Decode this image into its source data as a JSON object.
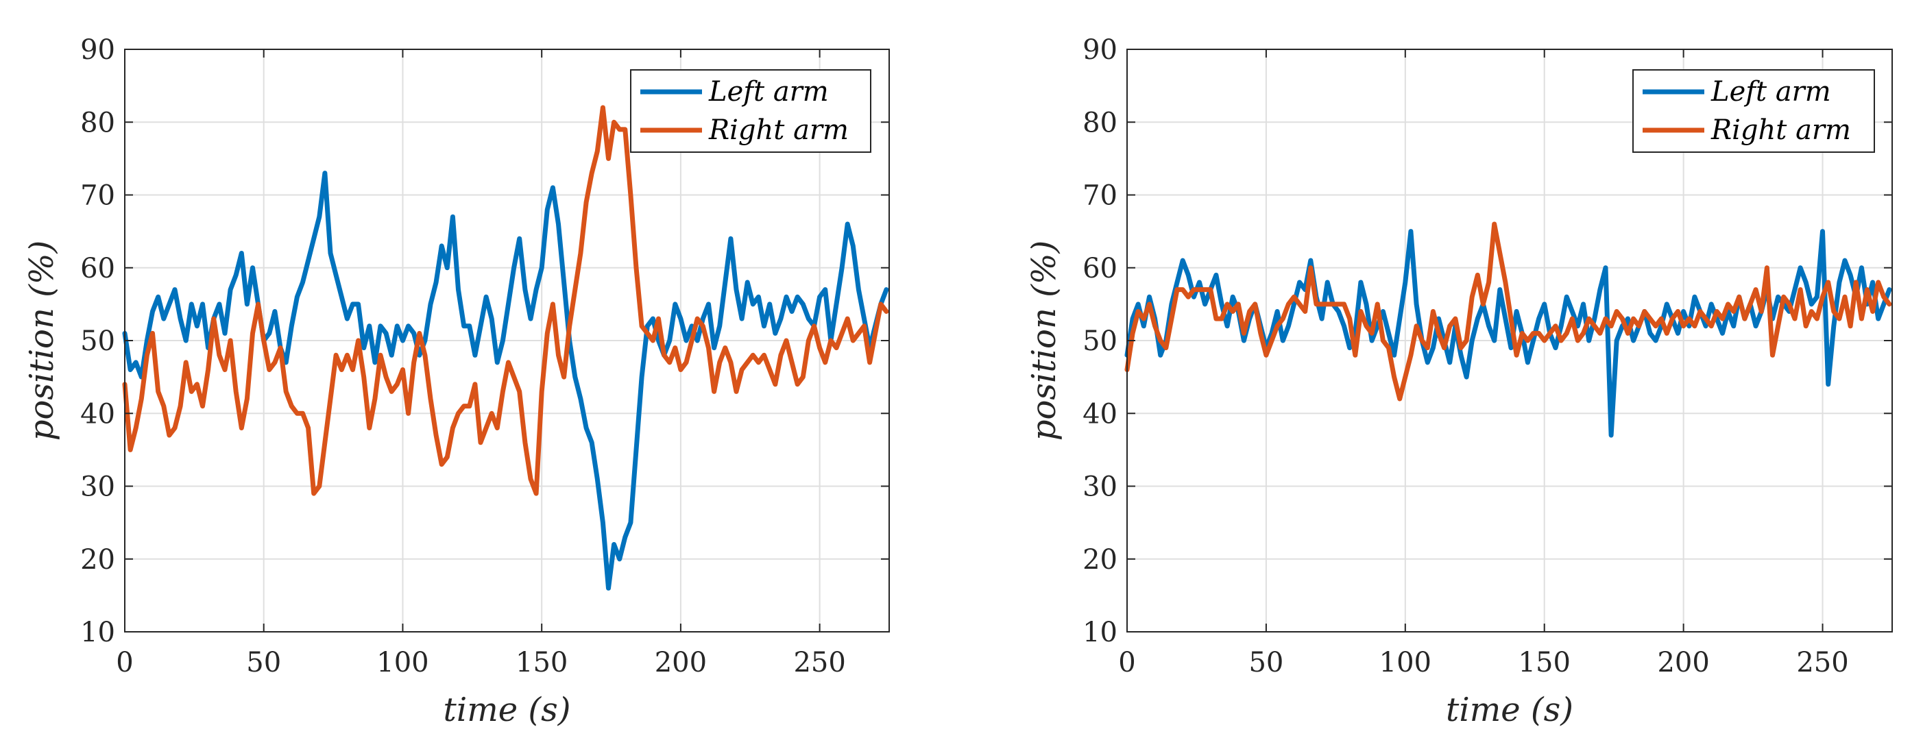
{
  "chart_data": [
    {
      "type": "line",
      "xlabel": "time (s)",
      "ylabel": "position (%)",
      "xlim": [
        0,
        275
      ],
      "ylim": [
        10,
        90
      ],
      "xticks": [
        0,
        50,
        100,
        150,
        200,
        250
      ],
      "yticks": [
        10,
        20,
        30,
        40,
        50,
        60,
        70,
        80,
        90
      ],
      "grid": true,
      "legend_position": "top-right",
      "series": [
        {
          "name": "Left arm",
          "color": "#0072BD",
          "x": [
            0,
            2,
            4,
            6,
            8,
            10,
            12,
            14,
            16,
            18,
            20,
            22,
            24,
            26,
            28,
            30,
            32,
            34,
            36,
            38,
            40,
            42,
            44,
            46,
            48,
            50,
            52,
            54,
            56,
            58,
            60,
            62,
            64,
            66,
            68,
            70,
            72,
            74,
            76,
            78,
            80,
            82,
            84,
            86,
            88,
            90,
            92,
            94,
            96,
            98,
            100,
            102,
            104,
            106,
            108,
            110,
            112,
            114,
            116,
            118,
            120,
            122,
            124,
            126,
            128,
            130,
            132,
            134,
            136,
            138,
            140,
            142,
            144,
            146,
            148,
            150,
            152,
            154,
            156,
            158,
            160,
            162,
            164,
            166,
            168,
            170,
            172,
            174,
            176,
            178,
            180,
            182,
            184,
            186,
            188,
            190,
            192,
            194,
            196,
            198,
            200,
            202,
            204,
            206,
            208,
            210,
            212,
            214,
            216,
            218,
            220,
            222,
            224,
            226,
            228,
            230,
            232,
            234,
            236,
            238,
            240,
            242,
            244,
            246,
            248,
            250,
            252,
            254,
            256,
            258,
            260,
            262,
            264,
            266,
            268,
            270,
            272,
            274
          ],
          "y": [
            51,
            46,
            47,
            45,
            50,
            54,
            56,
            53,
            55,
            57,
            53,
            50,
            55,
            52,
            55,
            49,
            53,
            55,
            51,
            57,
            59,
            62,
            55,
            60,
            55,
            50,
            51,
            54,
            49,
            47,
            52,
            56,
            58,
            61,
            64,
            67,
            73,
            62,
            59,
            56,
            53,
            55,
            55,
            49,
            52,
            47,
            52,
            51,
            48,
            52,
            50,
            52,
            51,
            48,
            50,
            55,
            58,
            63,
            60,
            67,
            57,
            52,
            52,
            48,
            52,
            56,
            53,
            47,
            50,
            55,
            60,
            64,
            57,
            53,
            57,
            60,
            68,
            71,
            66,
            58,
            50,
            45,
            42,
            38,
            36,
            31,
            25,
            16,
            22,
            20,
            23,
            25,
            35,
            45,
            52,
            53,
            50,
            48,
            50,
            55,
            53,
            50,
            52,
            50,
            53,
            55,
            49,
            52,
            58,
            64,
            57,
            53,
            58,
            55,
            56,
            52,
            55,
            51,
            53,
            56,
            54,
            56,
            55,
            53,
            52,
            56,
            57,
            50,
            55,
            60,
            66,
            63,
            57,
            53,
            49,
            52,
            55,
            57
          ]
        },
        {
          "name": "Right arm",
          "color": "#D95319",
          "x": [
            0,
            2,
            4,
            6,
            8,
            10,
            12,
            14,
            16,
            18,
            20,
            22,
            24,
            26,
            28,
            30,
            32,
            34,
            36,
            38,
            40,
            42,
            44,
            46,
            48,
            50,
            52,
            54,
            56,
            58,
            60,
            62,
            64,
            66,
            68,
            70,
            72,
            74,
            76,
            78,
            80,
            82,
            84,
            86,
            88,
            90,
            92,
            94,
            96,
            98,
            100,
            102,
            104,
            106,
            108,
            110,
            112,
            114,
            116,
            118,
            120,
            122,
            124,
            126,
            128,
            130,
            132,
            134,
            136,
            138,
            140,
            142,
            144,
            146,
            148,
            150,
            152,
            154,
            156,
            158,
            160,
            162,
            164,
            166,
            168,
            170,
            172,
            174,
            176,
            178,
            180,
            182,
            184,
            186,
            188,
            190,
            192,
            194,
            196,
            198,
            200,
            202,
            204,
            206,
            208,
            210,
            212,
            214,
            216,
            218,
            220,
            222,
            224,
            226,
            228,
            230,
            232,
            234,
            236,
            238,
            240,
            242,
            244,
            246,
            248,
            250,
            252,
            254,
            256,
            258,
            260,
            262,
            264,
            266,
            268,
            270,
            272,
            274
          ],
          "y": [
            44,
            35,
            38,
            42,
            48,
            51,
            43,
            41,
            37,
            38,
            41,
            47,
            43,
            44,
            41,
            46,
            53,
            48,
            46,
            50,
            43,
            38,
            42,
            51,
            55,
            50,
            46,
            47,
            49,
            43,
            41,
            40,
            40,
            38,
            29,
            30,
            36,
            42,
            48,
            46,
            48,
            46,
            50,
            45,
            38,
            42,
            48,
            45,
            43,
            44,
            46,
            40,
            47,
            51,
            48,
            42,
            37,
            33,
            34,
            38,
            40,
            41,
            41,
            44,
            36,
            38,
            40,
            38,
            43,
            47,
            45,
            43,
            36,
            31,
            29,
            43,
            51,
            55,
            48,
            45,
            52,
            57,
            62,
            69,
            73,
            76,
            82,
            75,
            80,
            79,
            79,
            70,
            60,
            52,
            51,
            50,
            53,
            48,
            47,
            49,
            46,
            47,
            50,
            53,
            52,
            49,
            43,
            47,
            49,
            47,
            43,
            46,
            47,
            48,
            47,
            48,
            46,
            44,
            48,
            50,
            47,
            44,
            45,
            50,
            52,
            49,
            47,
            50,
            49,
            51,
            53,
            50,
            51,
            52,
            47,
            51,
            55,
            54
          ]
        }
      ]
    },
    {
      "type": "line",
      "xlabel": "time (s)",
      "ylabel": "position (%)",
      "xlim": [
        0,
        275
      ],
      "ylim": [
        10,
        90
      ],
      "xticks": [
        0,
        50,
        100,
        150,
        200,
        250
      ],
      "yticks": [
        10,
        20,
        30,
        40,
        50,
        60,
        70,
        80,
        90
      ],
      "grid": true,
      "legend_position": "top-right",
      "series": [
        {
          "name": "Left arm",
          "color": "#0072BD",
          "x": [
            0,
            2,
            4,
            6,
            8,
            10,
            12,
            14,
            16,
            18,
            20,
            22,
            24,
            26,
            28,
            30,
            32,
            34,
            36,
            38,
            40,
            42,
            44,
            46,
            48,
            50,
            52,
            54,
            56,
            58,
            60,
            62,
            64,
            66,
            68,
            70,
            72,
            74,
            76,
            78,
            80,
            82,
            84,
            86,
            88,
            90,
            92,
            94,
            96,
            98,
            100,
            102,
            104,
            106,
            108,
            110,
            112,
            114,
            116,
            118,
            120,
            122,
            124,
            126,
            128,
            130,
            132,
            134,
            136,
            138,
            140,
            142,
            144,
            146,
            148,
            150,
            152,
            154,
            156,
            158,
            160,
            162,
            164,
            166,
            168,
            170,
            172,
            174,
            176,
            178,
            180,
            182,
            184,
            186,
            188,
            190,
            192,
            194,
            196,
            198,
            200,
            202,
            204,
            206,
            208,
            210,
            212,
            214,
            216,
            218,
            220,
            222,
            224,
            226,
            228,
            230,
            232,
            234,
            236,
            238,
            240,
            242,
            244,
            246,
            248,
            250,
            252,
            254,
            256,
            258,
            260,
            262,
            264,
            266,
            268,
            270,
            272,
            274
          ],
          "y": [
            48,
            53,
            55,
            52,
            56,
            53,
            48,
            50,
            55,
            58,
            61,
            59,
            56,
            58,
            55,
            57,
            59,
            55,
            52,
            56,
            54,
            50,
            53,
            55,
            52,
            49,
            51,
            54,
            50,
            52,
            55,
            58,
            57,
            61,
            56,
            53,
            58,
            55,
            54,
            52,
            49,
            51,
            58,
            55,
            50,
            52,
            54,
            51,
            48,
            53,
            58,
            65,
            55,
            50,
            47,
            49,
            53,
            50,
            47,
            52,
            48,
            45,
            50,
            53,
            55,
            52,
            50,
            57,
            53,
            49,
            54,
            51,
            47,
            50,
            53,
            55,
            51,
            49,
            52,
            56,
            54,
            52,
            55,
            50,
            53,
            57,
            60,
            37,
            50,
            52,
            53,
            50,
            52,
            54,
            51,
            50,
            52,
            55,
            53,
            51,
            54,
            52,
            56,
            54,
            52,
            55,
            53,
            51,
            54,
            52,
            56,
            53,
            55,
            52,
            54,
            57,
            53,
            56,
            55,
            54,
            57,
            60,
            58,
            55,
            56,
            65,
            44,
            52,
            58,
            61,
            59,
            56,
            60,
            55,
            58,
            53,
            55,
            57
          ]
        },
        {
          "name": "Right arm",
          "color": "#D95319",
          "x": [
            0,
            2,
            4,
            6,
            8,
            10,
            12,
            14,
            16,
            18,
            20,
            22,
            24,
            26,
            28,
            30,
            32,
            34,
            36,
            38,
            40,
            42,
            44,
            46,
            48,
            50,
            52,
            54,
            56,
            58,
            60,
            62,
            64,
            66,
            68,
            70,
            72,
            74,
            76,
            78,
            80,
            82,
            84,
            86,
            88,
            90,
            92,
            94,
            96,
            98,
            100,
            102,
            104,
            106,
            108,
            110,
            112,
            114,
            116,
            118,
            120,
            122,
            124,
            126,
            128,
            130,
            132,
            134,
            136,
            138,
            140,
            142,
            144,
            146,
            148,
            150,
            152,
            154,
            156,
            158,
            160,
            162,
            164,
            166,
            168,
            170,
            172,
            174,
            176,
            178,
            180,
            182,
            184,
            186,
            188,
            190,
            192,
            194,
            196,
            198,
            200,
            202,
            204,
            206,
            208,
            210,
            212,
            214,
            216,
            218,
            220,
            222,
            224,
            226,
            228,
            230,
            232,
            234,
            236,
            238,
            240,
            242,
            244,
            246,
            248,
            250,
            252,
            254,
            256,
            258,
            260,
            262,
            264,
            266,
            268,
            270,
            272,
            274
          ],
          "y": [
            46,
            51,
            54,
            53,
            55,
            52,
            50,
            49,
            53,
            57,
            57,
            56,
            57,
            57,
            57,
            57,
            53,
            53,
            55,
            54,
            55,
            51,
            54,
            55,
            51,
            48,
            50,
            52,
            53,
            55,
            56,
            55,
            54,
            60,
            55,
            55,
            55,
            55,
            55,
            55,
            53,
            48,
            54,
            52,
            51,
            55,
            50,
            49,
            45,
            42,
            45,
            48,
            52,
            50,
            49,
            54,
            51,
            49,
            52,
            53,
            49,
            50,
            56,
            59,
            55,
            58,
            66,
            62,
            58,
            53,
            48,
            51,
            50,
            51,
            51,
            50,
            51,
            52,
            50,
            51,
            53,
            50,
            51,
            53,
            52,
            51,
            53,
            52,
            54,
            53,
            51,
            53,
            52,
            54,
            53,
            52,
            53,
            51,
            53,
            54,
            52,
            53,
            52,
            54,
            53,
            52,
            54,
            53,
            55,
            54,
            56,
            53,
            55,
            57,
            54,
            60,
            48,
            52,
            56,
            55,
            53,
            57,
            52,
            54,
            53,
            56,
            58,
            54,
            53,
            56,
            52,
            58,
            53,
            57,
            54,
            58,
            56,
            55
          ]
        }
      ]
    }
  ]
}
